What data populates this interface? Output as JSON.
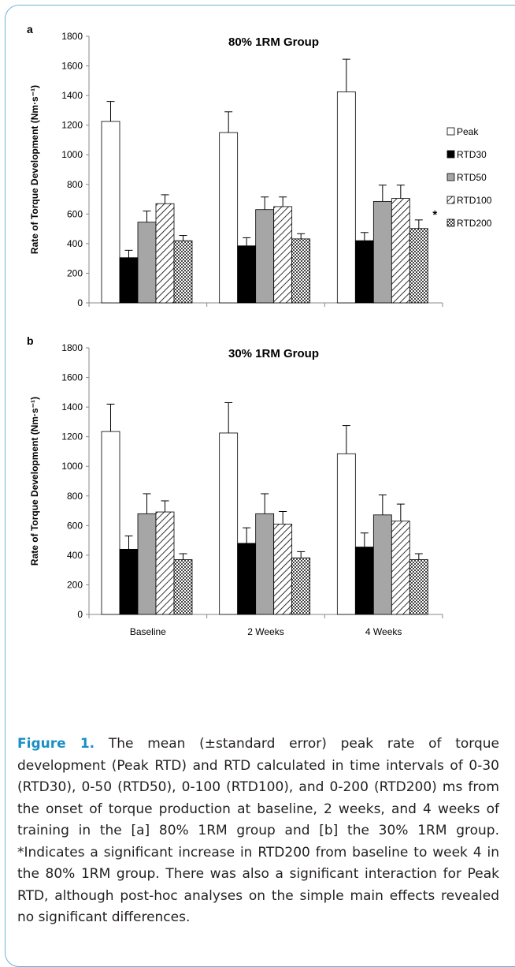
{
  "chart_data": [
    {
      "panel_label": "a",
      "type": "bar",
      "title": "80% 1RM Group",
      "ylabel": "Rate of Torque Development (Nm·s⁻¹)",
      "xlabel": "",
      "ylim": [
        0,
        1800
      ],
      "yticks": [
        "0",
        "200",
        "400",
        "600",
        "800",
        "1000",
        "1200",
        "1400",
        "1600",
        "1800"
      ],
      "categories": [
        "Baseline",
        "2 Weeks",
        "4 Weeks"
      ],
      "show_category_labels": false,
      "series": [
        {
          "name": "Peak",
          "values": [
            1225,
            1150,
            1425
          ],
          "errors": [
            135,
            140,
            220
          ]
        },
        {
          "name": "RTD30",
          "values": [
            305,
            385,
            420
          ],
          "errors": [
            50,
            55,
            55
          ]
        },
        {
          "name": "RTD50",
          "values": [
            545,
            630,
            685
          ],
          "errors": [
            75,
            85,
            110
          ]
        },
        {
          "name": "RTD100",
          "values": [
            670,
            650,
            705
          ],
          "errors": [
            60,
            65,
            90
          ]
        },
        {
          "name": "RTD200",
          "values": [
            420,
            432,
            502
          ],
          "errors": [
            35,
            35,
            58
          ]
        }
      ],
      "annotations": [
        {
          "text": "*",
          "series": "RTD200",
          "category": "4 Weeks"
        }
      ],
      "legend": "right",
      "grid": false
    },
    {
      "panel_label": "b",
      "type": "bar",
      "title": "30% 1RM Group",
      "ylabel": "Rate of Torque Development (Nm·s⁻¹)",
      "xlabel": "",
      "ylim": [
        0,
        1800
      ],
      "yticks": [
        "0",
        "200",
        "400",
        "600",
        "800",
        "1000",
        "1200",
        "1400",
        "1600",
        "1800"
      ],
      "categories": [
        "Baseline",
        "2 Weeks",
        "4 Weeks"
      ],
      "show_category_labels": true,
      "series": [
        {
          "name": "Peak",
          "values": [
            1235,
            1225,
            1085
          ],
          "errors": [
            185,
            205,
            190
          ]
        },
        {
          "name": "RTD30",
          "values": [
            440,
            480,
            455
          ],
          "errors": [
            90,
            105,
            95
          ]
        },
        {
          "name": "RTD50",
          "values": [
            680,
            680,
            672
          ],
          "errors": [
            135,
            135,
            135
          ]
        },
        {
          "name": "RTD100",
          "values": [
            692,
            610,
            630
          ],
          "errors": [
            75,
            85,
            115
          ]
        },
        {
          "name": "RTD200",
          "values": [
            370,
            382,
            370
          ],
          "errors": [
            40,
            42,
            40
          ]
        }
      ],
      "annotations": [],
      "legend": "none",
      "grid": false
    }
  ],
  "legend_fills": {
    "Peak": "#ffffff",
    "RTD30": "#000000",
    "RTD50": "#a6a6a6",
    "RTD100": "hatch",
    "RTD200": "checker"
  },
  "caption": {
    "label": "Figure 1.",
    "text": "The mean (±standard error) peak rate of torque development (Peak RTD) and RTD calculated in time intervals of 0-30 (RTD30), 0-50 (RTD50), 0-100 (RTD100), and 0-200 (RTD200) ms from the onset of torque production at baseline, 2 weeks, and 4 weeks of training in the [a] 80% 1RM group and [b] the 30% 1RM group. *Indicates a significant increase in RTD200 from baseline to week 4 in the 80% 1RM group. There was also a significant interaction for Peak RTD, although post-hoc analyses on the simple main effects revealed no significant differences."
  },
  "colors": {
    "accent": "#1a8fc4",
    "frame": "#6fb1d6",
    "text": "#231f20"
  }
}
